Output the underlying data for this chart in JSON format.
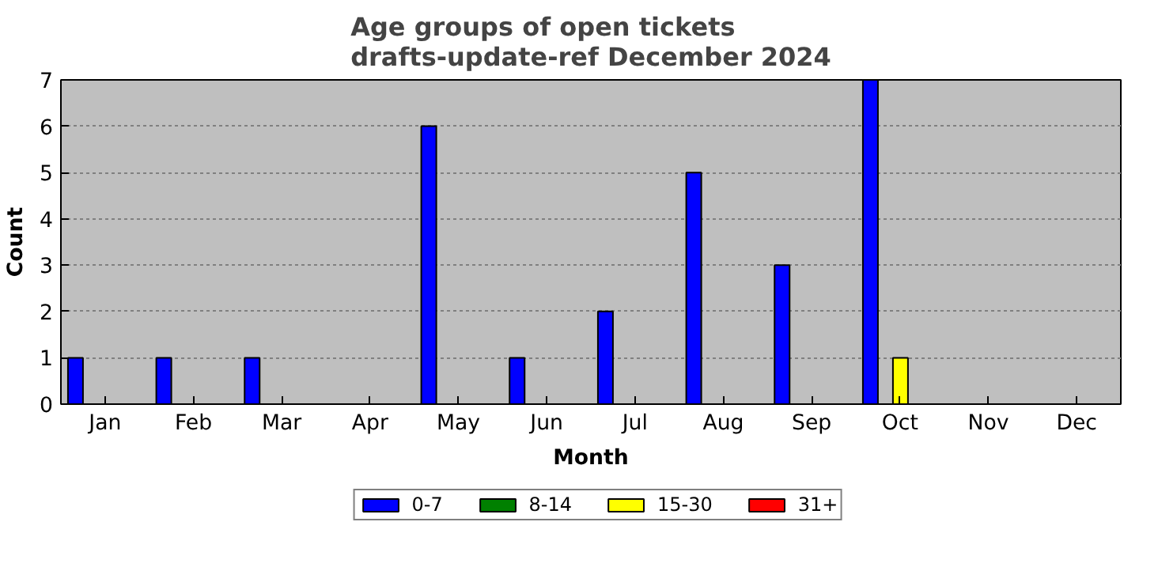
{
  "chart_data": {
    "type": "bar",
    "title": "Age groups of open tickets\ndrafts-update-ref December 2024",
    "xlabel": "Month",
    "ylabel": "Count",
    "categories": [
      "Jan",
      "Feb",
      "Mar",
      "Apr",
      "May",
      "Jun",
      "Jul",
      "Aug",
      "Sep",
      "Oct",
      "Nov",
      "Dec"
    ],
    "series": [
      {
        "name": "0-7",
        "color": "#0000ff",
        "values": [
          1,
          1,
          1,
          0,
          6,
          1,
          2,
          5,
          3,
          7,
          0,
          0
        ]
      },
      {
        "name": "8-14",
        "color": "#008000",
        "values": [
          0,
          0,
          0,
          0,
          0,
          0,
          0,
          0,
          0,
          0,
          0,
          0
        ]
      },
      {
        "name": "15-30",
        "color": "#ffff00",
        "values": [
          0,
          0,
          0,
          0,
          0,
          0,
          0,
          0,
          0,
          1,
          0,
          0
        ]
      },
      {
        "name": "31+",
        "color": "#ff0000",
        "values": [
          0,
          0,
          0,
          0,
          0,
          0,
          0,
          0,
          0,
          0,
          0,
          0
        ]
      }
    ],
    "ylim": [
      0,
      7
    ],
    "yticks": [
      0,
      1,
      2,
      3,
      4,
      5,
      6,
      7
    ],
    "grid": "y",
    "legend": "bottom"
  }
}
